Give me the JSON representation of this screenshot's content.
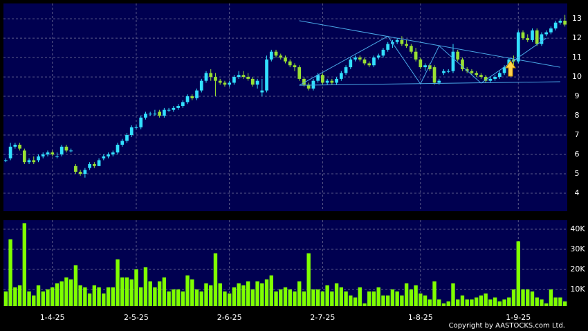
{
  "chart_data": {
    "type": "candlestick",
    "categories": [
      null,
      null,
      null,
      null,
      null,
      null,
      null,
      null,
      null,
      null,
      "1-4-25",
      null,
      null,
      null,
      null,
      null,
      null,
      null,
      null,
      null,
      null,
      null,
      null,
      null,
      null,
      null,
      null,
      null,
      "2-5-25",
      null,
      null,
      null,
      null,
      null,
      null,
      null,
      null,
      null,
      null,
      null,
      null,
      null,
      null,
      null,
      null,
      null,
      null,
      null,
      "2-6-25",
      null,
      null,
      null,
      null,
      null,
      null,
      null,
      null,
      null,
      null,
      null,
      null,
      null,
      null,
      null,
      null,
      null,
      null,
      null,
      "2-7-25",
      null,
      null,
      null,
      null,
      null,
      null,
      null,
      null,
      null,
      null,
      null,
      null,
      null,
      null,
      null,
      null,
      null,
      null,
      null,
      null,
      "1-8-25",
      null,
      null,
      null,
      null,
      null,
      null,
      null,
      null,
      null,
      null,
      null,
      null,
      null,
      null,
      null,
      null,
      null,
      null,
      null,
      null,
      "1-9-25",
      null,
      null,
      null,
      null,
      null,
      null,
      null,
      null,
      null,
      null
    ],
    "ohlc": [
      [
        5.7,
        5.8,
        5.6,
        5.7
      ],
      [
        5.8,
        6.6,
        5.7,
        6.4
      ],
      [
        6.4,
        6.6,
        6.3,
        6.5
      ],
      [
        6.5,
        6.6,
        6.2,
        6.3
      ],
      [
        6.2,
        6.3,
        5.5,
        5.6
      ],
      [
        5.6,
        5.8,
        5.5,
        5.7
      ],
      [
        5.7,
        5.9,
        5.5,
        5.6
      ],
      [
        5.7,
        6.0,
        5.6,
        5.9
      ],
      [
        5.9,
        6.1,
        5.8,
        6.0
      ],
      [
        6.0,
        6.2,
        5.9,
        6.1
      ],
      [
        6.1,
        6.2,
        5.9,
        6.0
      ],
      [
        5.9,
        6.1,
        5.8,
        5.9
      ],
      [
        6.0,
        6.5,
        5.9,
        6.4
      ],
      [
        6.4,
        6.5,
        6.1,
        6.2
      ],
      [
        6.2,
        6.3,
        6.1,
        6.2
      ],
      [
        5.4,
        5.5,
        5.0,
        5.1
      ],
      [
        5.1,
        5.2,
        4.9,
        5.0
      ],
      [
        5.0,
        5.3,
        4.8,
        5.2
      ],
      [
        5.3,
        5.6,
        5.2,
        5.5
      ],
      [
        5.5,
        5.6,
        5.3,
        5.4
      ],
      [
        5.4,
        5.8,
        5.4,
        5.7
      ],
      [
        5.8,
        6.0,
        5.7,
        5.9
      ],
      [
        5.9,
        6.1,
        5.8,
        6.0
      ],
      [
        6.0,
        6.2,
        5.9,
        6.1
      ],
      [
        6.1,
        6.6,
        6.0,
        6.5
      ],
      [
        6.5,
        6.8,
        6.4,
        6.7
      ],
      [
        6.7,
        7.1,
        6.6,
        7.0
      ],
      [
        7.0,
        7.5,
        6.9,
        7.4
      ],
      [
        7.4,
        7.5,
        7.3,
        7.4
      ],
      [
        7.4,
        8.0,
        7.3,
        7.9
      ],
      [
        7.9,
        8.2,
        7.8,
        8.1
      ],
      [
        8.1,
        8.2,
        8.0,
        8.1
      ],
      [
        8.1,
        8.3,
        8.0,
        8.1
      ],
      [
        8.2,
        8.3,
        7.9,
        8.0
      ],
      [
        8.0,
        8.4,
        7.9,
        8.3
      ],
      [
        8.3,
        8.4,
        8.2,
        8.3
      ],
      [
        8.3,
        8.5,
        8.2,
        8.4
      ],
      [
        8.4,
        8.6,
        8.3,
        8.5
      ],
      [
        8.5,
        8.8,
        8.4,
        8.7
      ],
      [
        8.7,
        9.1,
        8.6,
        9.0
      ],
      [
        9.0,
        9.1,
        8.8,
        8.9
      ],
      [
        8.9,
        9.4,
        8.8,
        9.3
      ],
      [
        9.3,
        9.9,
        9.2,
        9.8
      ],
      [
        9.8,
        10.3,
        9.7,
        10.2
      ],
      [
        10.2,
        10.4,
        9.8,
        10.0
      ],
      [
        10.0,
        10.2,
        9.0,
        9.8
      ],
      [
        9.8,
        9.9,
        9.6,
        9.7
      ],
      [
        9.7,
        9.8,
        9.5,
        9.6
      ],
      [
        9.6,
        9.8,
        9.5,
        9.7
      ],
      [
        9.7,
        10.1,
        9.6,
        10.0
      ],
      [
        10.0,
        10.3,
        9.9,
        10.1
      ],
      [
        10.1,
        10.3,
        9.9,
        10.0
      ],
      [
        10.0,
        10.2,
        9.8,
        9.9
      ],
      [
        9.9,
        10.0,
        9.5,
        9.6
      ],
      [
        9.6,
        9.9,
        9.4,
        9.8
      ],
      [
        9.2,
        9.9,
        9.0,
        9.3
      ],
      [
        9.3,
        11.1,
        9.2,
        10.9
      ],
      [
        10.9,
        11.4,
        10.8,
        11.3
      ],
      [
        11.3,
        11.4,
        11.0,
        11.1
      ],
      [
        11.1,
        11.2,
        10.9,
        11.0
      ],
      [
        11.0,
        11.1,
        10.7,
        10.8
      ],
      [
        10.8,
        10.9,
        10.5,
        10.6
      ],
      [
        10.6,
        10.7,
        10.3,
        10.5
      ],
      [
        10.5,
        10.6,
        9.8,
        9.9
      ],
      [
        9.9,
        10.0,
        9.5,
        9.6
      ],
      [
        9.6,
        9.7,
        9.3,
        9.4
      ],
      [
        9.4,
        9.9,
        9.3,
        9.8
      ],
      [
        9.8,
        10.2,
        9.7,
        10.1
      ],
      [
        10.1,
        10.2,
        9.6,
        9.7
      ],
      [
        9.7,
        9.9,
        9.6,
        9.8
      ],
      [
        9.8,
        9.9,
        9.6,
        9.7
      ],
      [
        9.7,
        10.0,
        9.6,
        9.9
      ],
      [
        9.9,
        10.3,
        9.8,
        10.2
      ],
      [
        10.2,
        10.6,
        10.1,
        10.5
      ],
      [
        10.5,
        11.0,
        10.4,
        10.9
      ],
      [
        10.9,
        11.1,
        10.8,
        11.0
      ],
      [
        11.0,
        11.1,
        10.8,
        10.9
      ],
      [
        10.9,
        11.0,
        10.6,
        10.7
      ],
      [
        10.7,
        10.8,
        10.5,
        10.6
      ],
      [
        10.6,
        11.1,
        10.5,
        11.0
      ],
      [
        11.0,
        11.2,
        10.9,
        11.1
      ],
      [
        11.1,
        11.5,
        11.0,
        11.4
      ],
      [
        11.4,
        11.8,
        11.3,
        11.7
      ],
      [
        11.7,
        11.9,
        11.5,
        11.8
      ],
      [
        11.8,
        12.0,
        11.7,
        11.9
      ],
      [
        11.9,
        12.1,
        11.6,
        11.7
      ],
      [
        11.7,
        11.9,
        11.5,
        11.6
      ],
      [
        11.6,
        11.7,
        11.2,
        11.3
      ],
      [
        11.3,
        11.5,
        10.8,
        10.9
      ],
      [
        10.9,
        11.0,
        10.4,
        10.5
      ],
      [
        10.5,
        10.7,
        10.3,
        10.6
      ],
      [
        10.6,
        10.7,
        10.3,
        10.4
      ],
      [
        10.5,
        10.6,
        9.6,
        9.7
      ],
      [
        9.7,
        9.9,
        9.6,
        9.8
      ],
      [
        10.2,
        10.4,
        10.1,
        10.3
      ],
      [
        10.3,
        10.4,
        10.2,
        10.3
      ],
      [
        10.3,
        11.7,
        10.2,
        11.3
      ],
      [
        11.3,
        11.4,
        10.8,
        10.9
      ],
      [
        10.9,
        11.0,
        10.3,
        10.4
      ],
      [
        10.4,
        10.5,
        10.2,
        10.3
      ],
      [
        10.3,
        10.4,
        10.1,
        10.2
      ],
      [
        10.2,
        10.3,
        10.0,
        10.1
      ],
      [
        10.1,
        10.2,
        9.9,
        10.0
      ],
      [
        10.0,
        10.1,
        9.7,
        9.8
      ],
      [
        9.8,
        10.0,
        9.7,
        9.9
      ],
      [
        9.9,
        10.1,
        9.8,
        10.0
      ],
      [
        10.0,
        10.3,
        9.9,
        10.2
      ],
      [
        10.2,
        10.6,
        10.1,
        10.5
      ],
      [
        10.5,
        11.0,
        10.4,
        10.9
      ],
      [
        10.9,
        11.1,
        10.5,
        10.8
      ],
      [
        10.8,
        12.4,
        10.7,
        12.3
      ],
      [
        12.3,
        12.4,
        11.9,
        12.0
      ],
      [
        12.0,
        12.2,
        11.8,
        11.9
      ],
      [
        11.9,
        12.5,
        11.8,
        12.4
      ],
      [
        12.4,
        12.5,
        11.6,
        11.7
      ],
      [
        11.7,
        12.3,
        11.6,
        12.2
      ],
      [
        12.2,
        12.4,
        12.1,
        12.3
      ],
      [
        12.3,
        12.6,
        12.2,
        12.5
      ],
      [
        12.5,
        12.9,
        12.4,
        12.8
      ],
      [
        12.8,
        13.0,
        12.7,
        12.9
      ],
      [
        12.9,
        13.2,
        12.6,
        12.7
      ]
    ],
    "up_color": "#33e0ff",
    "down_color": "#99e033",
    "ylim": [
      3.07,
      13.79
    ],
    "yticks": [
      4,
      5,
      6,
      7,
      8,
      9,
      10,
      11,
      12,
      13
    ],
    "trendlines": [
      [
        [
          63,
          12.9
        ],
        [
          119,
          10.5
        ]
      ],
      [
        [
          63,
          9.57
        ],
        [
          119,
          9.75
        ]
      ],
      [
        [
          63,
          9.57
        ],
        [
          82,
          12.1
        ],
        [
          89,
          9.64
        ],
        [
          93,
          11.6
        ],
        [
          102,
          9.68
        ],
        [
          116,
          12.0
        ]
      ]
    ],
    "trendline_color": "#4aa8e8",
    "volume": {
      "values": [
        9000,
        35000,
        11000,
        12000,
        43000,
        9000,
        7000,
        12000,
        9000,
        10000,
        11000,
        13000,
        14000,
        16000,
        15000,
        22000,
        12000,
        11000,
        8000,
        12000,
        11000,
        8000,
        11000,
        11000,
        25000,
        16000,
        16000,
        15000,
        20000,
        11000,
        21000,
        14000,
        11000,
        14000,
        16000,
        9000,
        10000,
        10000,
        9000,
        17000,
        15000,
        10000,
        9000,
        13000,
        12000,
        28000,
        13000,
        9000,
        8000,
        11000,
        13000,
        12000,
        14000,
        10000,
        14000,
        13000,
        15000,
        17000,
        9000,
        10000,
        11000,
        10000,
        9000,
        14000,
        9000,
        28000,
        10000,
        10000,
        9000,
        12000,
        9000,
        13000,
        11000,
        9000,
        7000,
        6000,
        11000,
        3000,
        9000,
        9000,
        11000,
        7000,
        7000,
        10000,
        9000,
        7000,
        13000,
        10000,
        12000,
        8000,
        7000,
        5000,
        14000,
        5000,
        3000,
        4000,
        13000,
        5000,
        7000,
        5000,
        5000,
        6000,
        7000,
        8000,
        5000,
        6000,
        4000,
        5000,
        6000,
        10000,
        34000,
        10000,
        10000,
        9000,
        6000,
        5000,
        3000,
        10000,
        6000,
        6000,
        4000
      ],
      "color": "#7fff00",
      "ylim": [
        1700,
        44500
      ],
      "yticks": [
        {
          "value": 10000,
          "label": "10K"
        },
        {
          "value": 20000,
          "label": "20K"
        },
        {
          "value": 30000,
          "label": "30K"
        },
        {
          "value": 40000,
          "label": "40K"
        }
      ]
    },
    "grid": true,
    "copyright": "Copyright by AASTOCKS.com Ltd."
  }
}
